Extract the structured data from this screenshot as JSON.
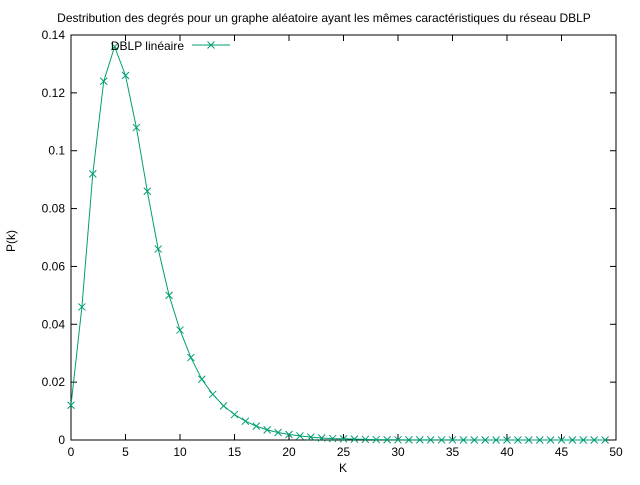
{
  "chart_data": {
    "type": "line",
    "title": "Destribution des degrés pour un graphe aléatoire ayant les mêmes caractéristiques du réseau DBLP",
    "xlabel": "K",
    "ylabel": "P(k)",
    "xlim": [
      0,
      50
    ],
    "ylim": [
      0,
      0.14
    ],
    "xticks": [
      "0",
      "5",
      "10",
      "15",
      "20",
      "25",
      "30",
      "35",
      "40",
      "45",
      "50"
    ],
    "yticks": [
      "0",
      "0.02",
      "0.04",
      "0.06",
      "0.08",
      "0.1",
      "0.12",
      "0.14"
    ],
    "grid": false,
    "legend_position": "top-left",
    "series": [
      {
        "name": "DBLP linéaire",
        "color": "#009e73",
        "marker": "x",
        "x": [
          0,
          1,
          2,
          3,
          4,
          5,
          6,
          7,
          8,
          9,
          10,
          11,
          12,
          13,
          14,
          15,
          16,
          17,
          18,
          19,
          20,
          21,
          22,
          23,
          24,
          25,
          26,
          27,
          28,
          29,
          30,
          31,
          32,
          33,
          34,
          35,
          36,
          37,
          38,
          39,
          40,
          41,
          42,
          43,
          44,
          45,
          46,
          47,
          48,
          49
        ],
        "y": [
          0.012,
          0.046,
          0.092,
          0.124,
          0.136,
          0.126,
          0.108,
          0.086,
          0.066,
          0.05,
          0.038,
          0.0285,
          0.021,
          0.0158,
          0.0118,
          0.0088,
          0.0065,
          0.0048,
          0.0035,
          0.0026,
          0.0019,
          0.0014,
          0.001,
          0.0007,
          0.0005,
          0.0004,
          0.0003,
          0.0002,
          0.00015,
          0.0001,
          7e-05,
          5e-05,
          4e-05,
          3e-05,
          2e-05,
          2e-05,
          1e-05,
          1e-05,
          1e-05,
          1e-05,
          0,
          0,
          0,
          0,
          0,
          0,
          0,
          0,
          0,
          0
        ]
      }
    ]
  }
}
